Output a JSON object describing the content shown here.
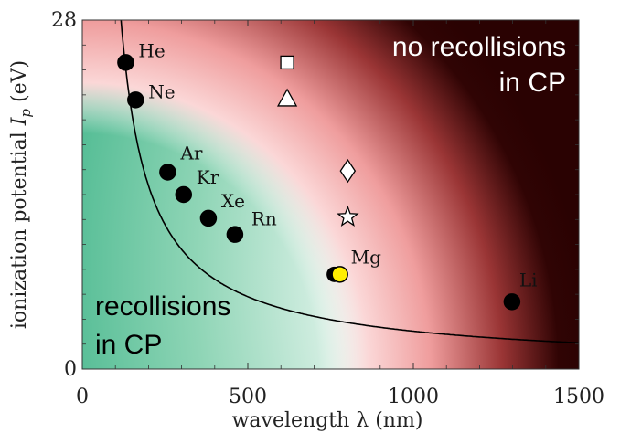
{
  "chart_data": {
    "type": "scatter",
    "title": "",
    "xlabel": "wavelength λ (nm)",
    "ylabel": "ionization potential I_p (eV)",
    "ylabel_parts": {
      "prefix": "ionization potential ",
      "symbol": "I",
      "sub": "p",
      "suffix": " (eV)"
    },
    "xlim": [
      0,
      1500
    ],
    "ylim": [
      0,
      28
    ],
    "x_ticks": [
      0,
      500,
      1000,
      1500
    ],
    "y_ticks": [
      0,
      28
    ],
    "x_tick_labels": [
      "0",
      "500",
      "1000",
      "1500"
    ],
    "y_tick_labels": [
      "0",
      "28"
    ],
    "grid": false,
    "region_labels": {
      "upper": [
        "no recollisions",
        "in CP"
      ],
      "lower": [
        "recollisions",
        "in CP"
      ]
    },
    "elements": [
      {
        "name": "He",
        "x": 131,
        "y": 24.6,
        "color": "#000000"
      },
      {
        "name": "Ne",
        "x": 161,
        "y": 21.6,
        "color": "#000000"
      },
      {
        "name": "Ar",
        "x": 258,
        "y": 15.8,
        "color": "#000000"
      },
      {
        "name": "Kr",
        "x": 306,
        "y": 14.0,
        "color": "#000000"
      },
      {
        "name": "Xe",
        "x": 381,
        "y": 12.1,
        "color": "#000000"
      },
      {
        "name": "Rn",
        "x": 461,
        "y": 10.8,
        "color": "#000000"
      },
      {
        "name": "Mg",
        "x": 778,
        "y": 7.6,
        "color": "#ffee00"
      },
      {
        "name": "Li",
        "x": 1298,
        "y": 5.4,
        "color": "#000000"
      }
    ],
    "extra_markers": [
      {
        "shape": "square",
        "x": 619,
        "y": 24.6
      },
      {
        "shape": "triangle",
        "x": 619,
        "y": 21.7
      },
      {
        "shape": "diamond",
        "x": 802,
        "y": 15.9
      },
      {
        "shape": "star",
        "x": 802,
        "y": 12.2
      }
    ],
    "boundary_curve": {
      "form": "y = a / (x - c)^b",
      "a": 1280,
      "c": 40,
      "b": 0.88
    }
  }
}
